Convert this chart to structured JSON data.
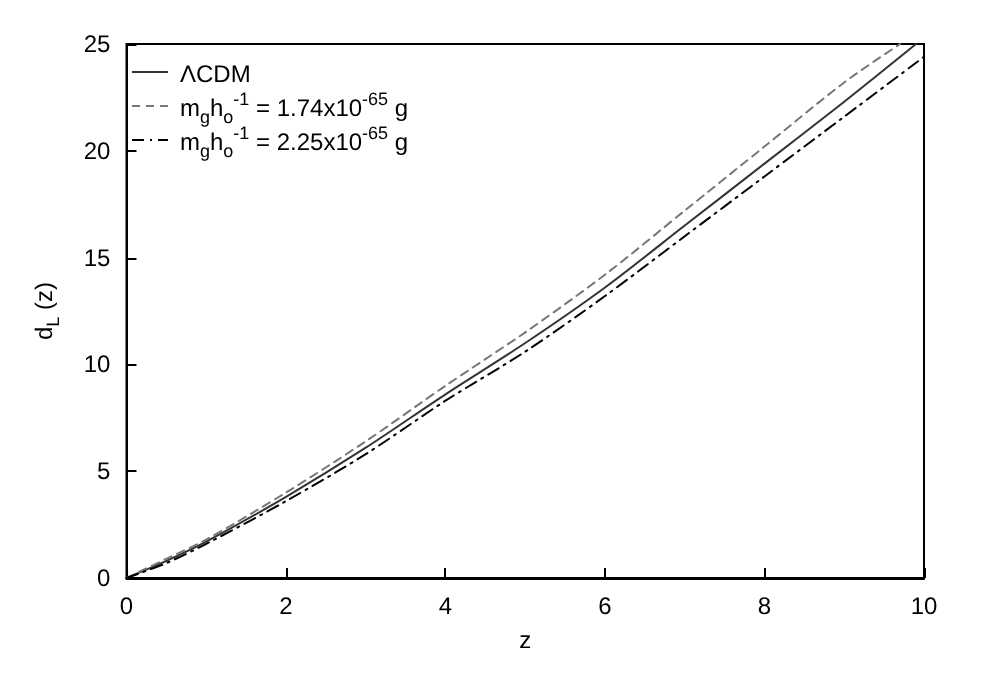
{
  "chart_data": {
    "type": "line",
    "xlabel": "z",
    "ylabel": "d$_{L}$ (z)",
    "xlim": [
      0,
      10
    ],
    "ylim": [
      0,
      25
    ],
    "xticks": [
      0,
      2,
      4,
      6,
      8,
      10
    ],
    "yticks": [
      0,
      5,
      10,
      15,
      20,
      25
    ],
    "grid": false,
    "legend": "top left",
    "marker": "none",
    "series": [
      {
        "name": "ΛCDM",
        "color": "#333333",
        "line_style": "solid",
        "x": [
          0,
          0.5,
          1,
          2,
          3,
          4,
          5,
          6,
          7,
          8,
          9,
          9.9
        ],
        "values": [
          0,
          0.8,
          1.7,
          3.8,
          6.1,
          8.6,
          11.0,
          13.6,
          16.5,
          19.4,
          22.3,
          25
        ]
      },
      {
        "name": "m$_{g}$h$_{o}$$^{-1}$ = 1.74x10$^{-65}$ g",
        "color": "#777777",
        "line_style": "dashed",
        "x": [
          0,
          0.5,
          1,
          2,
          3,
          4,
          5,
          6,
          7,
          8,
          9,
          9.7
        ],
        "values": [
          0,
          0.9,
          1.8,
          4.0,
          6.4,
          9.0,
          11.5,
          14.2,
          17.2,
          20.2,
          23.2,
          25
        ]
      },
      {
        "name": "m$_{g}$h$_{o}$$^{-1}$ = 2.25x10$^{-65}$ g",
        "color": "#000000",
        "line_style": "dotted",
        "x": [
          0,
          0.5,
          1,
          2,
          3,
          4,
          5,
          6,
          7,
          8,
          9,
          10
        ],
        "values": [
          0,
          0.7,
          1.6,
          3.6,
          5.8,
          8.3,
          10.6,
          13.2,
          16.0,
          18.8,
          21.6,
          24.4
        ]
      }
    ]
  }
}
